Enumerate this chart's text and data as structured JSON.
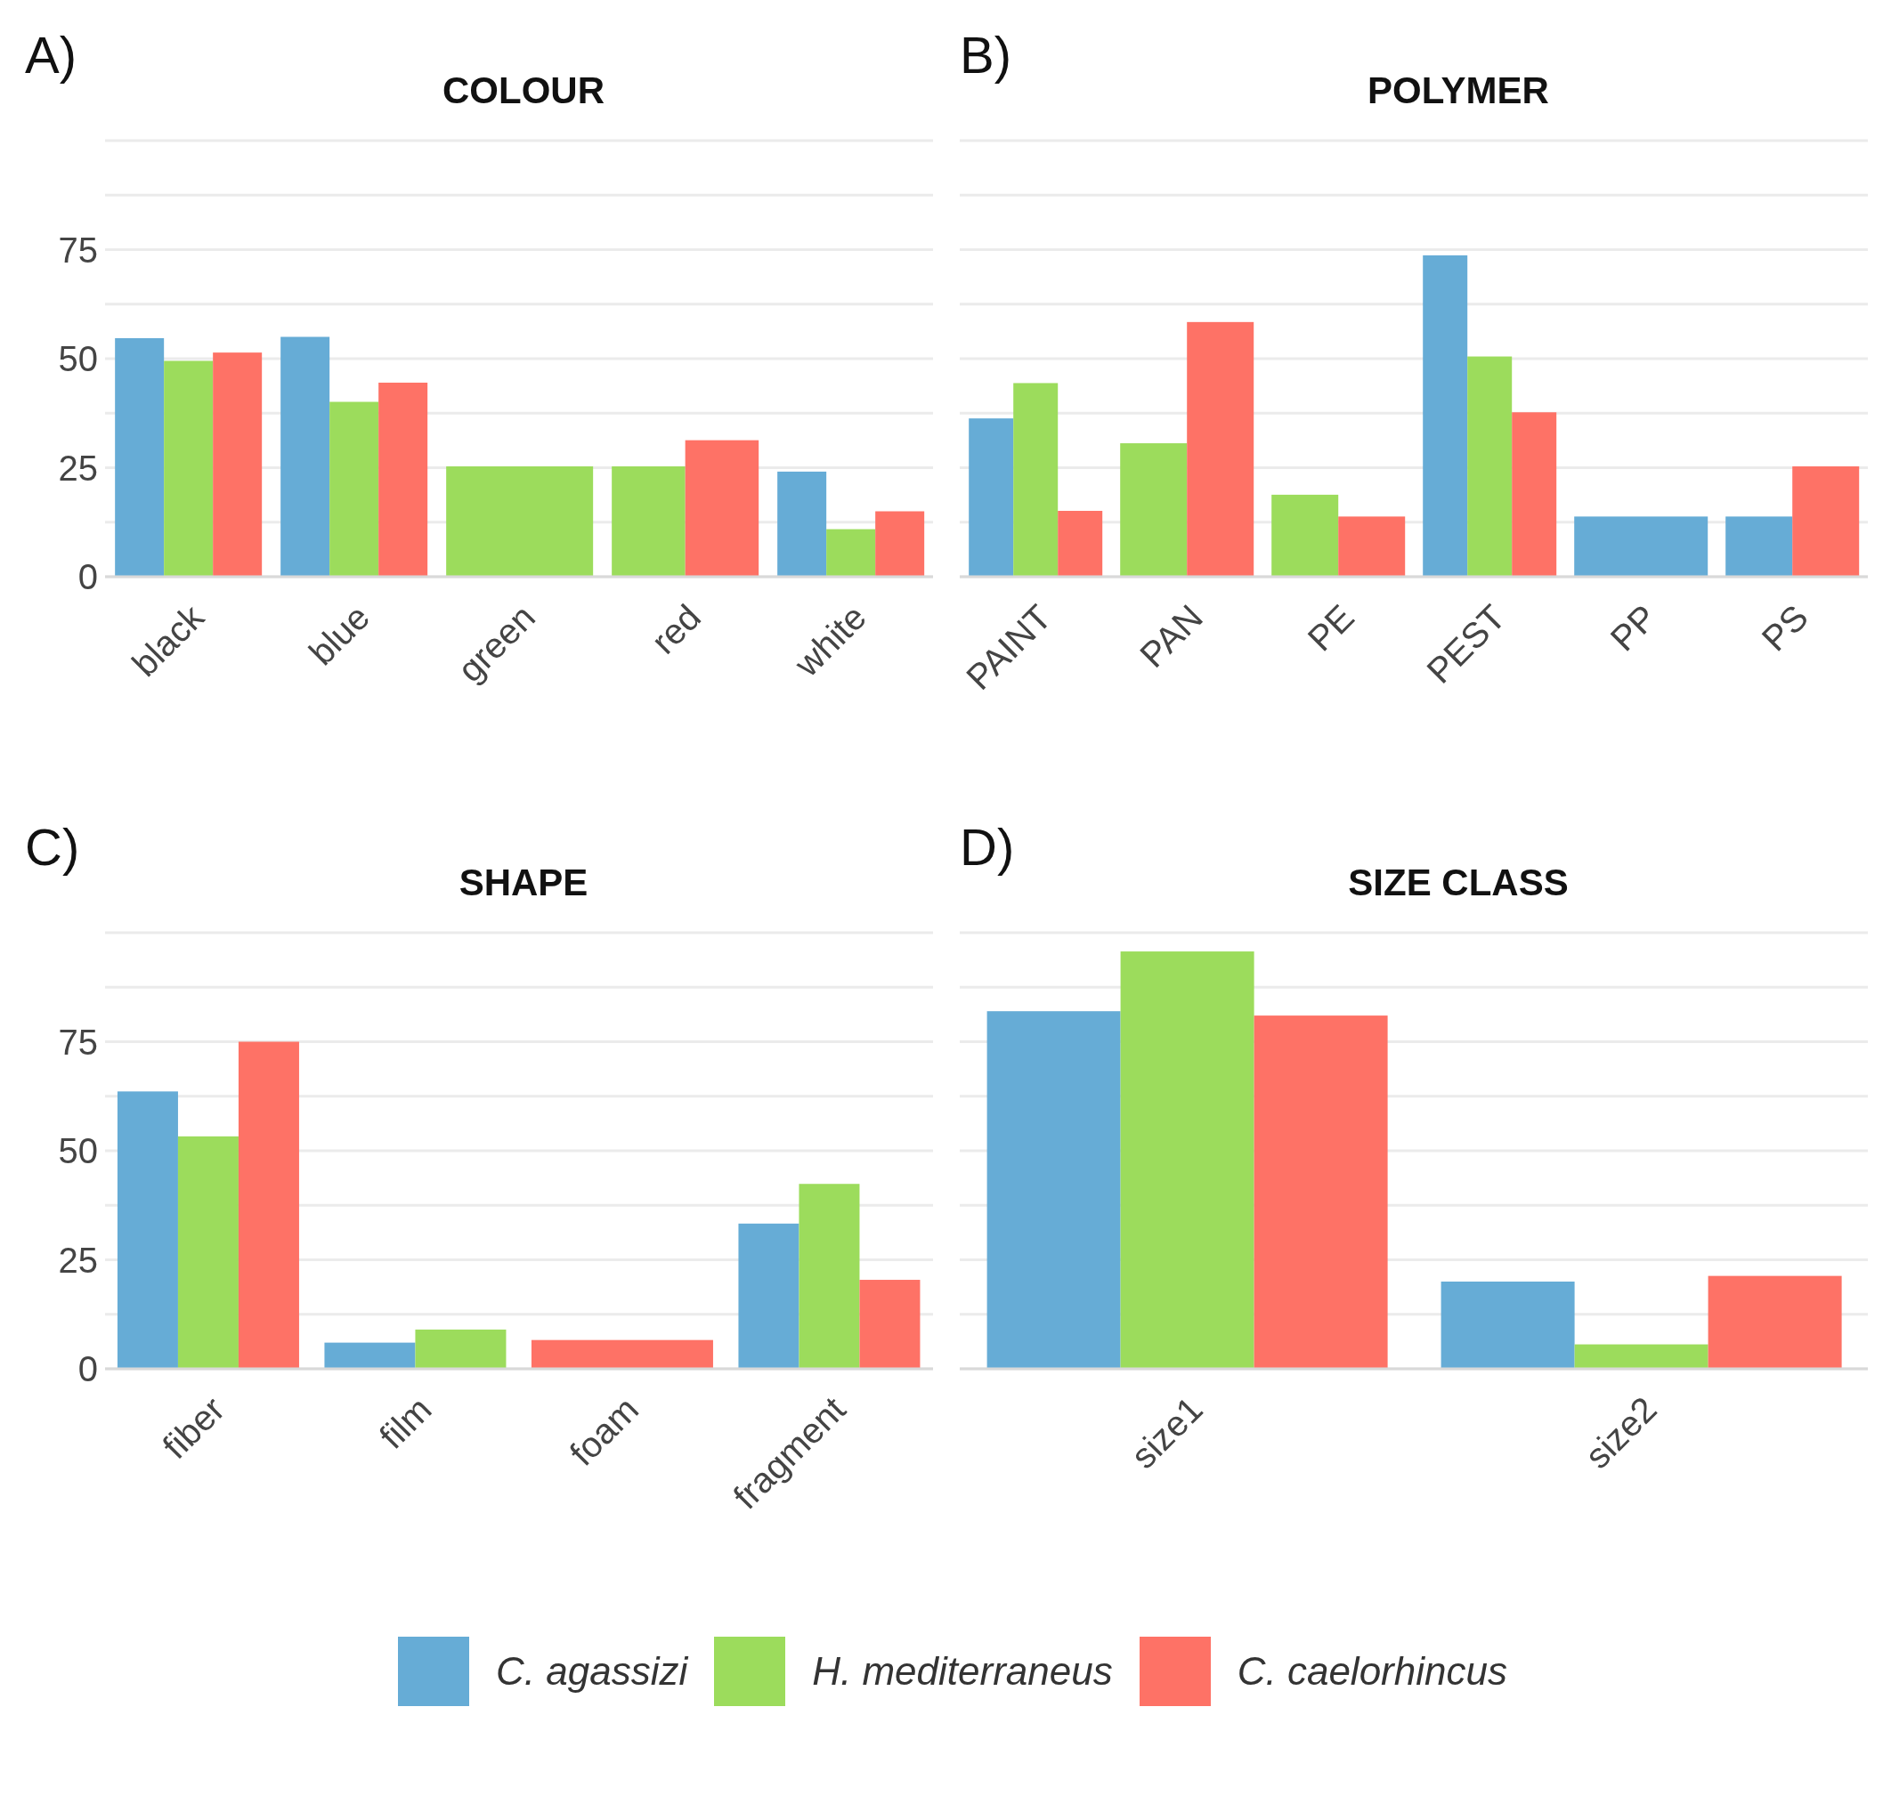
{
  "chart_data": [
    {
      "type": "bar",
      "title": "COLOUR",
      "annotations": [
        "A)"
      ],
      "categories": [
        "black",
        "blue",
        "green",
        "red",
        "white"
      ],
      "series": [
        {
          "color": "#66acd6",
          "values": [
            54.7,
            55,
            null,
            null,
            24.1
          ]
        },
        {
          "color": "#9cdc5c",
          "values": [
            49.5,
            40.1,
            25.3,
            25.3,
            10.9
          ]
        },
        {
          "color": "#fe7266",
          "values": [
            51.4,
            44.5,
            null,
            31.3,
            15
          ]
        }
      ],
      "ylim": [
        0,
        100
      ],
      "yticks": [
        0,
        {
          "value": 12.5,
          "label": null
        },
        25,
        {
          "value": 37.5,
          "label": null
        },
        50,
        {
          "value": 62.5,
          "label": null
        },
        75,
        {
          "value": 87.5,
          "label": null
        },
        {
          "value": 100,
          "label": null
        }
      ],
      "grid": "y"
    },
    {
      "type": "bar",
      "title": "POLYMER",
      "annotations": [
        "B)"
      ],
      "categories": [
        "PAINT",
        "PAN",
        "PE",
        "PEST",
        "PP",
        "PS"
      ],
      "series": [
        {
          "color": "#66acd6",
          "values": [
            36.3,
            null,
            null,
            73.7,
            13.8,
            13.8
          ]
        },
        {
          "color": "#9cdc5c",
          "values": [
            44.4,
            30.6,
            18.8,
            50.5,
            null,
            null
          ]
        },
        {
          "color": "#fe7266",
          "values": [
            15.1,
            58.4,
            13.8,
            37.7,
            null,
            25.3
          ]
        }
      ],
      "ylim": [
        0,
        100
      ],
      "yticks": [
        {
          "value": 0,
          "label": null
        },
        {
          "value": 12.5,
          "label": null
        },
        {
          "value": 25,
          "label": null
        },
        {
          "value": 37.5,
          "label": null
        },
        {
          "value": 50,
          "label": null
        },
        {
          "value": 62.5,
          "label": null
        },
        {
          "value": 75,
          "label": null
        },
        {
          "value": 87.5,
          "label": null
        },
        {
          "value": 100,
          "label": null
        }
      ],
      "grid": "y",
      "tick_labels": "x"
    },
    {
      "type": "bar",
      "title": "SHAPE",
      "annotations": [
        "C)"
      ],
      "categories": [
        "fiber",
        "film",
        "foam",
        "fragment"
      ],
      "series": [
        {
          "color": "#66acd6",
          "values": [
            63.6,
            6,
            null,
            33.3
          ]
        },
        {
          "color": "#9cdc5c",
          "values": [
            53.3,
            9,
            null,
            42.4
          ]
        },
        {
          "color": "#fe7266",
          "values": [
            75,
            null,
            6.6,
            20.4
          ]
        }
      ],
      "ylim": [
        0,
        100
      ],
      "yticks": [
        0,
        {
          "value": 12.5,
          "label": null
        },
        25,
        {
          "value": 37.5,
          "label": null
        },
        50,
        {
          "value": 62.5,
          "label": null
        },
        75,
        {
          "value": 87.5,
          "label": null
        },
        {
          "value": 100,
          "label": null
        }
      ],
      "grid": "y"
    },
    {
      "type": "bar",
      "title": "SIZE CLASS",
      "annotations": [
        "D)"
      ],
      "categories": [
        "size1",
        "size2"
      ],
      "series": [
        {
          "name": "C. agassizi",
          "color": "#66acd6",
          "values": [
            82,
            20
          ]
        },
        {
          "name": "H. mediterraneus",
          "color": "#9cdc5c",
          "values": [
            95.7,
            5.6
          ]
        },
        {
          "name": "C. caelorhincus",
          "color": "#fe7266",
          "values": [
            81,
            21.3
          ]
        }
      ],
      "ylim": [
        0,
        100
      ],
      "yticks": [
        {
          "value": 0,
          "label": null
        },
        {
          "value": 12.5,
          "label": null
        },
        {
          "value": 25,
          "label": null
        },
        {
          "value": 37.5,
          "label": null
        },
        {
          "value": 50,
          "label": null
        },
        {
          "value": 62.5,
          "label": null
        },
        {
          "value": 75,
          "label": null
        },
        {
          "value": 87.5,
          "label": null
        },
        {
          "value": 100,
          "label": null
        }
      ],
      "grid": "y",
      "tick_labels": "x",
      "legend": "bottom"
    }
  ]
}
